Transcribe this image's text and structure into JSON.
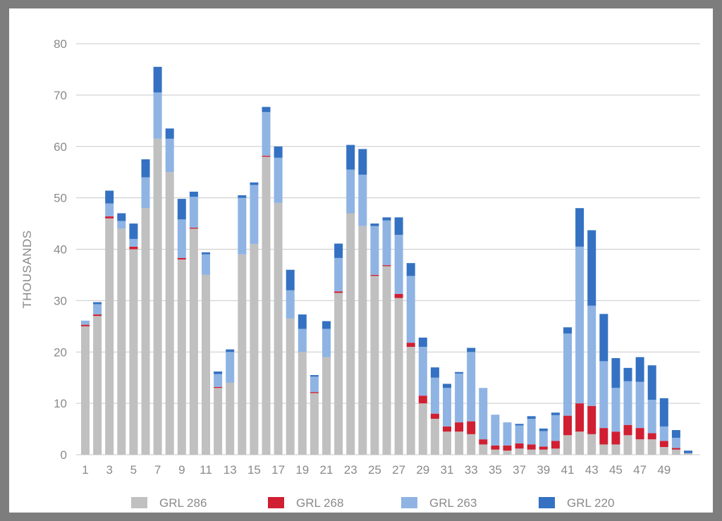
{
  "chart_data": {
    "type": "bar",
    "stacked": true,
    "title": "",
    "xlabel": "",
    "ylabel": "THOUSANDS",
    "ylim": [
      0,
      80
    ],
    "yticks": [
      0,
      10,
      20,
      30,
      40,
      50,
      60,
      70,
      80
    ],
    "grid": true,
    "legend_position": "bottom",
    "categories": [
      "1",
      "2",
      "3",
      "4",
      "5",
      "6",
      "7",
      "8",
      "9",
      "10",
      "11",
      "12",
      "13",
      "14",
      "15",
      "16",
      "17",
      "18",
      "19",
      "20",
      "21",
      "22",
      "23",
      "24",
      "25",
      "26",
      "27",
      "28",
      "29",
      "30",
      "31",
      "32",
      "33",
      "34",
      "35",
      "36",
      "37",
      "38",
      "39",
      "40",
      "41",
      "42",
      "43",
      "44",
      "45",
      "46",
      "47",
      "48",
      "49",
      "50",
      "51"
    ],
    "xtick_labels": [
      "1",
      "3",
      "5",
      "7",
      "9",
      "11",
      "13",
      "15",
      "17",
      "19",
      "21",
      "23",
      "25",
      "27",
      "29",
      "31",
      "33",
      "35",
      "37",
      "39",
      "41",
      "43",
      "45",
      "47",
      "49"
    ],
    "series": [
      {
        "name": "GRL 286",
        "color": "#c0c0c0",
        "values": [
          25,
          27,
          46,
          44,
          40,
          48,
          61.5,
          55,
          38,
          44,
          35,
          13,
          14,
          39,
          41,
          58,
          49,
          26.5,
          20,
          12,
          19,
          31.5,
          47,
          44.5,
          34.8,
          36.7,
          30.5,
          21,
          10,
          7,
          4.5,
          4.5,
          4,
          2,
          1,
          0.8,
          1.2,
          1,
          1,
          1.2,
          3.8,
          4.5,
          4,
          2,
          2,
          3.8,
          3,
          3,
          1.5,
          1,
          0.3
        ]
      },
      {
        "name": "GRL 268",
        "color": "#d01f32",
        "values": [
          0.3,
          0.3,
          0.4,
          0,
          0.5,
          0,
          0,
          0,
          0.3,
          0.2,
          0,
          0.2,
          0,
          0,
          0,
          0.2,
          0,
          0,
          0,
          0.2,
          0,
          0.3,
          0,
          0,
          0.2,
          0.2,
          0.8,
          0.8,
          1.5,
          1,
          1,
          1.8,
          2.5,
          1,
          0.8,
          1,
          1,
          1,
          0.6,
          1.5,
          3.8,
          5.5,
          5.5,
          3.2,
          2.5,
          2,
          2.2,
          1.2,
          1.2,
          0.3,
          0
        ]
      },
      {
        "name": "GRL 263",
        "color": "#8fb4e3",
        "values": [
          0.8,
          2,
          2.5,
          1.5,
          1.5,
          6,
          9,
          6.5,
          7.5,
          6,
          4,
          2.5,
          6,
          11,
          11.5,
          8.5,
          8.8,
          5.5,
          4.5,
          3,
          5.5,
          6.5,
          8.5,
          10,
          9.5,
          8.7,
          11.5,
          13,
          9.5,
          7,
          7.5,
          9.5,
          13.5,
          10,
          6,
          4.5,
          3.5,
          5,
          3,
          5,
          16,
          30.5,
          19.5,
          13,
          8.5,
          8.5,
          9,
          6.5,
          2.8,
          2,
          0
        ]
      },
      {
        "name": "GRL 220",
        "color": "#3471c2",
        "values": [
          0,
          0.4,
          2.5,
          1.5,
          3,
          3.5,
          5,
          2,
          4,
          1,
          0.4,
          0.5,
          0.5,
          0.5,
          0.5,
          1,
          2.2,
          4,
          2.8,
          0.3,
          1.5,
          2.8,
          4.8,
          5,
          0.5,
          0.6,
          3.4,
          2.5,
          1.8,
          2,
          0.8,
          0.3,
          0.8,
          0,
          0,
          0,
          0.3,
          0.5,
          0.5,
          0.5,
          1.2,
          7.5,
          14.7,
          9.2,
          5.8,
          2.6,
          4.8,
          6.7,
          5.5,
          1.5,
          0.5
        ]
      }
    ]
  }
}
